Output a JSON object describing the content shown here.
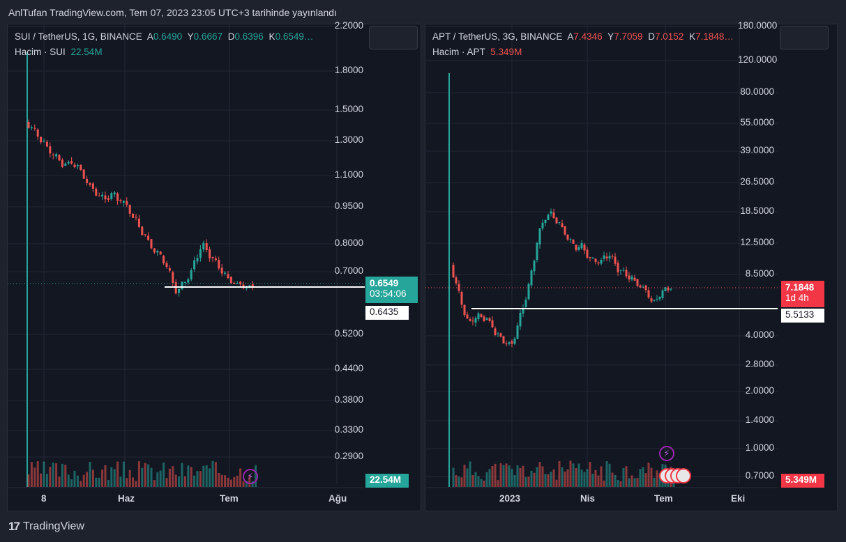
{
  "header": "AnlTufan TradingView.com, Tem 07, 2023 23:05 UTC+3 tarihinde yayınlandı",
  "logo_text": "TradingView",
  "colors": {
    "up": "#26a69a",
    "down": "#ef5350",
    "bg": "#131722",
    "grid": "#2a2e39"
  },
  "left": {
    "symbol": "SUI / TetherUS, 1G, BINANCE",
    "open_label": "A",
    "open": "0.6490",
    "high_label": "Y",
    "high": "0.6667",
    "low_label": "D",
    "low": "0.6396",
    "close_label": "K",
    "close": "0.6549…",
    "volume_label": "Hacim · SUI",
    "volume": "22.54M",
    "y_ticks": [
      "2.2000",
      "1.8000",
      "1.5000",
      "1.3000",
      "1.1000",
      "0.9500",
      "0.8000",
      "0.7000",
      "0.5200",
      "0.4400",
      "0.3800",
      "0.3300",
      "0.2900"
    ],
    "x_ticks": [
      "8",
      "Haz",
      "Tem",
      "Ağu"
    ],
    "price_tag": "0.6549",
    "countdown": "03:54:06",
    "line_tag": "0.6435",
    "volume_tag": "22.54M"
  },
  "right": {
    "symbol": "APT / TetherUS, 3G, BINANCE",
    "open_label": "A",
    "open": "7.4346",
    "high_label": "Y",
    "high": "7.7059",
    "low_label": "D",
    "low": "7.0152",
    "close_label": "K",
    "close": "7.1848…",
    "volume_label": "Hacim · APT",
    "volume": "5.349M",
    "y_ticks": [
      "180.0000",
      "120.0000",
      "80.0000",
      "55.0000",
      "39.0000",
      "26.5000",
      "18.5000",
      "12.5000",
      "8.5000",
      "4.0000",
      "2.8000",
      "2.0000",
      "1.4000",
      "1.0000",
      "0.7000"
    ],
    "x_ticks": [
      "2023",
      "Nis",
      "Tem",
      "Eki"
    ],
    "price_tag": "7.1848",
    "countdown": "1d 4h",
    "line_tag": "5.5133",
    "volume_tag": "5.349M"
  }
}
